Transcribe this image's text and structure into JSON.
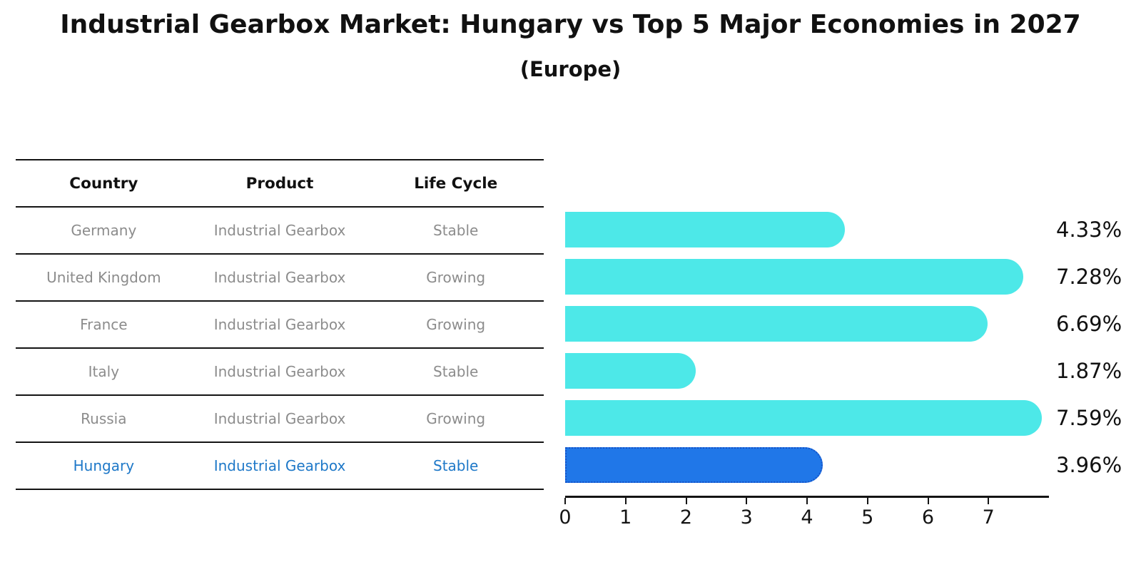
{
  "title": "Industrial Gearbox Market: Hungary vs Top 5 Major Economies in 2027",
  "subtitle": "(Europe)",
  "table": {
    "headers": [
      "Country",
      "Product",
      "Life Cycle"
    ],
    "rows": [
      {
        "country": "Germany",
        "product": "Industrial Gearbox",
        "life_cycle": "Stable",
        "highlighted": false
      },
      {
        "country": "United Kingdom",
        "product": "Industrial Gearbox",
        "life_cycle": "Growing",
        "highlighted": false
      },
      {
        "country": "France",
        "product": "Industrial Gearbox",
        "life_cycle": "Growing",
        "highlighted": false
      },
      {
        "country": "Italy",
        "product": "Industrial Gearbox",
        "life_cycle": "Stable",
        "highlighted": false
      },
      {
        "country": "Russia",
        "product": "Industrial Gearbox",
        "life_cycle": "Growing",
        "highlighted": false
      },
      {
        "country": "Hungary",
        "product": "Industrial Gearbox",
        "life_cycle": "Stable",
        "highlighted": true
      }
    ]
  },
  "chart_data": {
    "type": "bar",
    "orientation": "horizontal",
    "title": "Industrial Gearbox Market: Hungary vs Top 5 Major Economies in 2027",
    "subtitle": "(Europe)",
    "categories": [
      "Germany",
      "United Kingdom",
      "France",
      "Italy",
      "Russia",
      "Hungary"
    ],
    "values": [
      4.33,
      7.28,
      6.69,
      1.87,
      7.59,
      3.96
    ],
    "value_labels": [
      "4.33%",
      "7.28%",
      "6.69%",
      "1.87%",
      "7.59%",
      "3.96%"
    ],
    "unit": "%",
    "x_ticks": [
      0,
      1,
      2,
      3,
      4,
      5,
      6,
      7
    ],
    "xlim": [
      0,
      8
    ],
    "grid": false,
    "legend": "none",
    "highlight_index": 5
  },
  "colors": {
    "bar": "#4de8e8",
    "highlight_bar": "#2077e8",
    "highlight_border": "#1553c8",
    "highlight_text": "#1e78c8",
    "table_text": "#8c8c8c",
    "axis": "#141414"
  }
}
